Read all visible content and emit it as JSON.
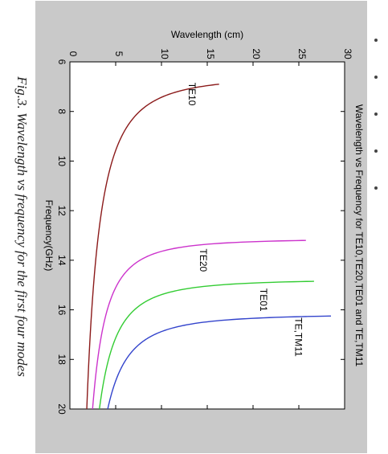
{
  "caption": "Fig.3. Wavelength vs frequency for the first four modes",
  "side_marks": 5,
  "chart_data": {
    "type": "line",
    "title": "Wavelength vs Frequency for TE10,TE20,TE01 and TE,TM11",
    "xlabel": "Frequency(GHz)",
    "ylabel": "Wavelength (cm)",
    "xlim": [
      6,
      20
    ],
    "ylim": [
      0,
      30
    ],
    "x_ticks": [
      "6",
      "8",
      "10",
      "12",
      "14",
      "16",
      "18",
      "20"
    ],
    "y_ticks": [
      "0",
      "5",
      "10",
      "15",
      "20",
      "25",
      "30"
    ],
    "grid": false,
    "background": "#c9c9c9",
    "plot_background": "#ffffff",
    "series": [
      {
        "name": "TE10",
        "color": "#8b1a1a",
        "cutoff_ghz": 6.56,
        "points": [
          [
            6.9,
            17.5
          ],
          [
            7.0,
            13.3
          ],
          [
            7.25,
            10.6
          ],
          [
            7.6,
            8.6
          ],
          [
            8.0,
            7.2
          ],
          [
            9.0,
            5.6
          ],
          [
            10.0,
            4.6
          ],
          [
            12.0,
            3.9
          ],
          [
            14.0,
            3.5
          ],
          [
            16.0,
            3.3
          ],
          [
            18.0,
            3.1
          ],
          [
            20.0,
            3.0
          ]
        ],
        "label_at": [
          7.3,
          13.0
        ]
      },
      {
        "name": "TE20",
        "color": "#cc33cc",
        "cutoff_ghz": 13.12,
        "points": [
          [
            13.2,
            24.5
          ],
          [
            13.3,
            17.0
          ],
          [
            13.6,
            11.5
          ],
          [
            14.0,
            8.6
          ],
          [
            15.0,
            6.2
          ],
          [
            16.0,
            5.2
          ],
          [
            18.0,
            4.3
          ],
          [
            20.0,
            3.8
          ]
        ],
        "label_at": [
          14.0,
          14.2
        ]
      },
      {
        "name": "TE01",
        "color": "#33cc33",
        "cutoff_ghz": 14.76,
        "points": [
          [
            14.85,
            25.5
          ],
          [
            15.0,
            16.5
          ],
          [
            15.5,
            10.0
          ],
          [
            16.0,
            7.9
          ],
          [
            17.0,
            6.2
          ],
          [
            18.0,
            5.3
          ],
          [
            20.0,
            4.5
          ]
        ],
        "label_at": [
          15.6,
          20.8
        ]
      },
      {
        "name": "TE,TM11",
        "color": "#3344cc",
        "cutoff_ghz": 16.16,
        "points": [
          [
            16.25,
            27.0
          ],
          [
            16.4,
            18.0
          ],
          [
            16.8,
            11.5
          ],
          [
            17.2,
            9.0
          ],
          [
            18.0,
            7.2
          ],
          [
            19.0,
            6.1
          ],
          [
            20.0,
            5.3
          ]
        ],
        "label_at": [
          17.1,
          24.6
        ]
      }
    ]
  }
}
